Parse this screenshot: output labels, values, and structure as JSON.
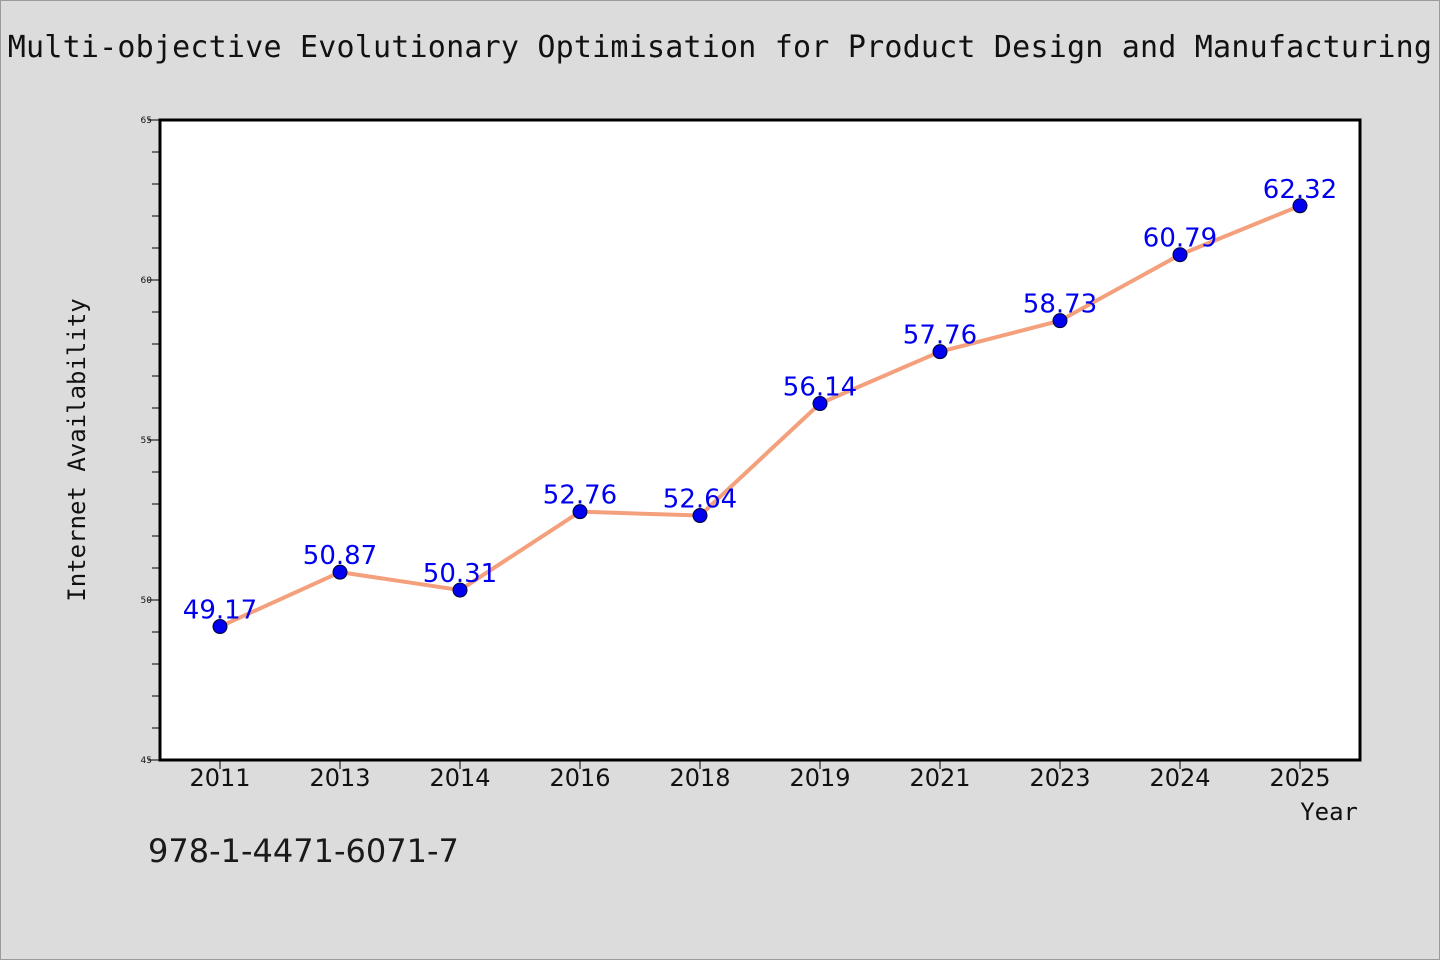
{
  "chart_data": {
    "type": "line",
    "title": "Multi-objective Evolutionary Optimisation for Product Design and Manufacturing",
    "xlabel": "Year",
    "ylabel": "Internet Availability",
    "categories": [
      "2011",
      "2013",
      "2014",
      "2016",
      "2018",
      "2019",
      "2021",
      "2023",
      "2024",
      "2025"
    ],
    "series": [
      {
        "values": [
          49.17,
          50.87,
          50.31,
          52.76,
          52.64,
          56.14,
          57.76,
          58.73,
          60.79,
          62.32
        ],
        "data_labels": [
          "49.17",
          "50.87",
          "50.31",
          "52.76",
          "52.64",
          "56.14",
          "57.76",
          "58.73",
          "60.79",
          "62.32"
        ]
      }
    ],
    "ylim": [
      45,
      65
    ],
    "y_ticks": [
      "45",
      "50",
      "55",
      "60",
      "65"
    ],
    "grid": false,
    "colors": {
      "line": "#f4a07c",
      "marker": "#0000ee",
      "label": "#0000ee"
    }
  },
  "footer": {
    "isbn": "978-1-4471-6071-7"
  }
}
